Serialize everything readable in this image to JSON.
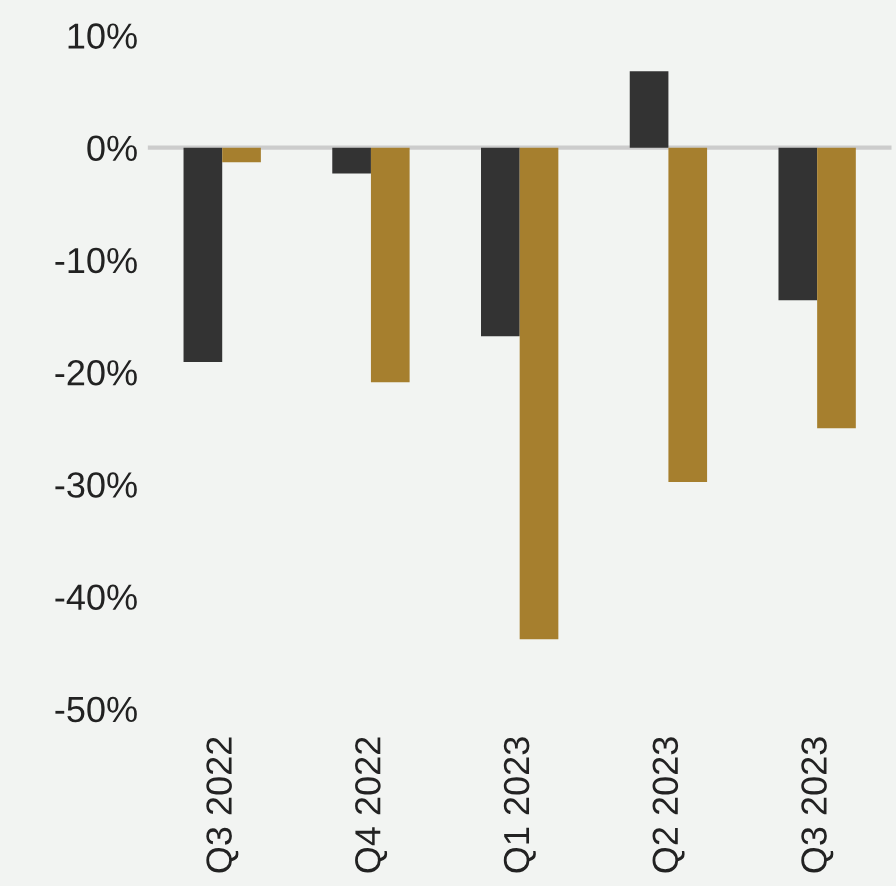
{
  "chart_data": {
    "type": "bar",
    "categories": [
      "Q3 2022",
      "Q4 2022",
      "Q1 2023",
      "Q2 2023",
      "Q3 2023"
    ],
    "series": [
      {
        "color": "#333333",
        "values": [
          -19.1,
          -2.3,
          -16.8,
          6.8,
          -13.6
        ]
      },
      {
        "color": "#a67f2e",
        "values": [
          -1.3,
          -20.9,
          -43.8,
          -29.8,
          -25.0
        ]
      }
    ],
    "ylim": [
      -50,
      10
    ],
    "ref_lines": [
      {
        "axis": "y",
        "value": 0,
        "color": "#cccccc"
      }
    ],
    "yticks": [
      {
        "value": 10,
        "label": "10%"
      },
      {
        "value": 0,
        "label": "0%"
      },
      {
        "value": -10,
        "label": "-10%"
      },
      {
        "value": -20,
        "label": "-20%"
      },
      {
        "value": -30,
        "label": "-30%"
      },
      {
        "value": -40,
        "label": "-40%"
      },
      {
        "value": -50,
        "label": "-50%"
      }
    ],
    "grid": false
  }
}
